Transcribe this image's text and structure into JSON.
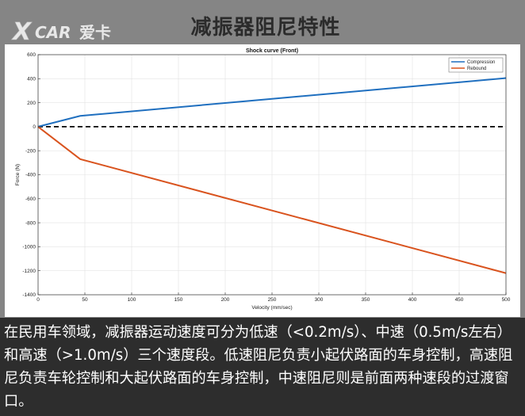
{
  "banner": {
    "title": "减振器阻尼特性"
  },
  "logo": {
    "text": "XCAR 爱卡"
  },
  "caption": "在民用车领域，减振器运动速度可分为低速（<0.2m/s）、中速（0.5m/s左右）和高速（>1.0m/s）三个速度段。低速阻尼负责小起伏路面的车身控制，高速阻尼负责车轮控制和大起伏路面的车身控制，中速阻尼则是前面两种速段的过渡窗口。",
  "colors": {
    "compression": "#1f6fbf",
    "rebound": "#d9531e",
    "zero_line": "#000000"
  },
  "chart_data": {
    "type": "line",
    "title": "Shock curve (Front)",
    "xlabel": "Velocity (mm/sec)",
    "ylabel": "Force (N)",
    "xlim": [
      0,
      500
    ],
    "ylim": [
      -1400,
      600
    ],
    "xticks": [
      0,
      50,
      100,
      150,
      200,
      250,
      300,
      350,
      400,
      450,
      500
    ],
    "yticks": [
      600,
      400,
      200,
      0,
      -200,
      -400,
      -600,
      -800,
      -1000,
      -1200,
      -1400
    ],
    "grid": true,
    "legend": "top-right",
    "series": [
      {
        "name": "Compression",
        "x": [
          0,
          45,
          500
        ],
        "y": [
          0,
          90,
          405
        ]
      },
      {
        "name": "Rebound",
        "x": [
          0,
          45,
          500
        ],
        "y": [
          0,
          -270,
          -1220
        ]
      }
    ],
    "reference_lines": [
      {
        "y": 0,
        "style": "dashed"
      }
    ]
  }
}
